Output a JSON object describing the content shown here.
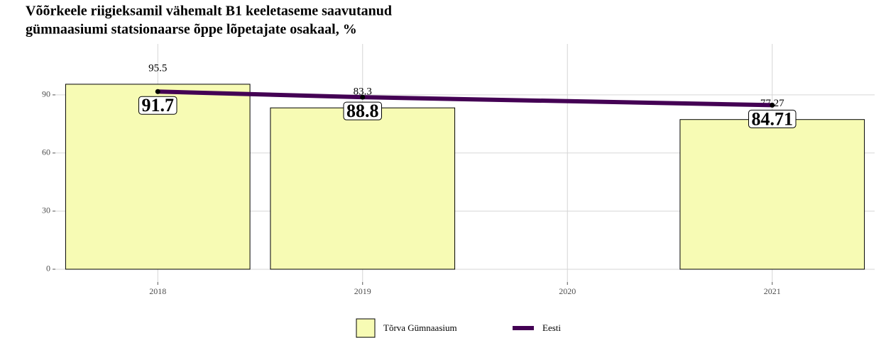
{
  "chart_data": {
    "type": "bar_line",
    "title": [
      "Võõrkeele riigieksamil vähemalt B1 keeletaseme saavutanud",
      "gümnaasiumi statsionaarse õppe lõpetajate osakaal, %"
    ],
    "categories": [
      "2018",
      "2019",
      "2020",
      "2021"
    ],
    "series": [
      {
        "name": "Tõrva Gümnaasium",
        "type": "bar",
        "color": "#f7fbb4",
        "x": [
          "2018",
          "2019",
          "2021"
        ],
        "values": [
          95.5,
          83.3,
          77.27
        ]
      },
      {
        "name": "Eesti",
        "type": "line",
        "color": "#440154",
        "x": [
          "2018",
          "2019",
          "2021"
        ],
        "values": [
          91.7,
          88.8,
          84.71
        ]
      }
    ],
    "ylim": [
      -6.6,
      116.3
    ],
    "yticks": [
      0,
      30,
      60,
      90
    ],
    "grid": true,
    "legend": "bottom"
  }
}
